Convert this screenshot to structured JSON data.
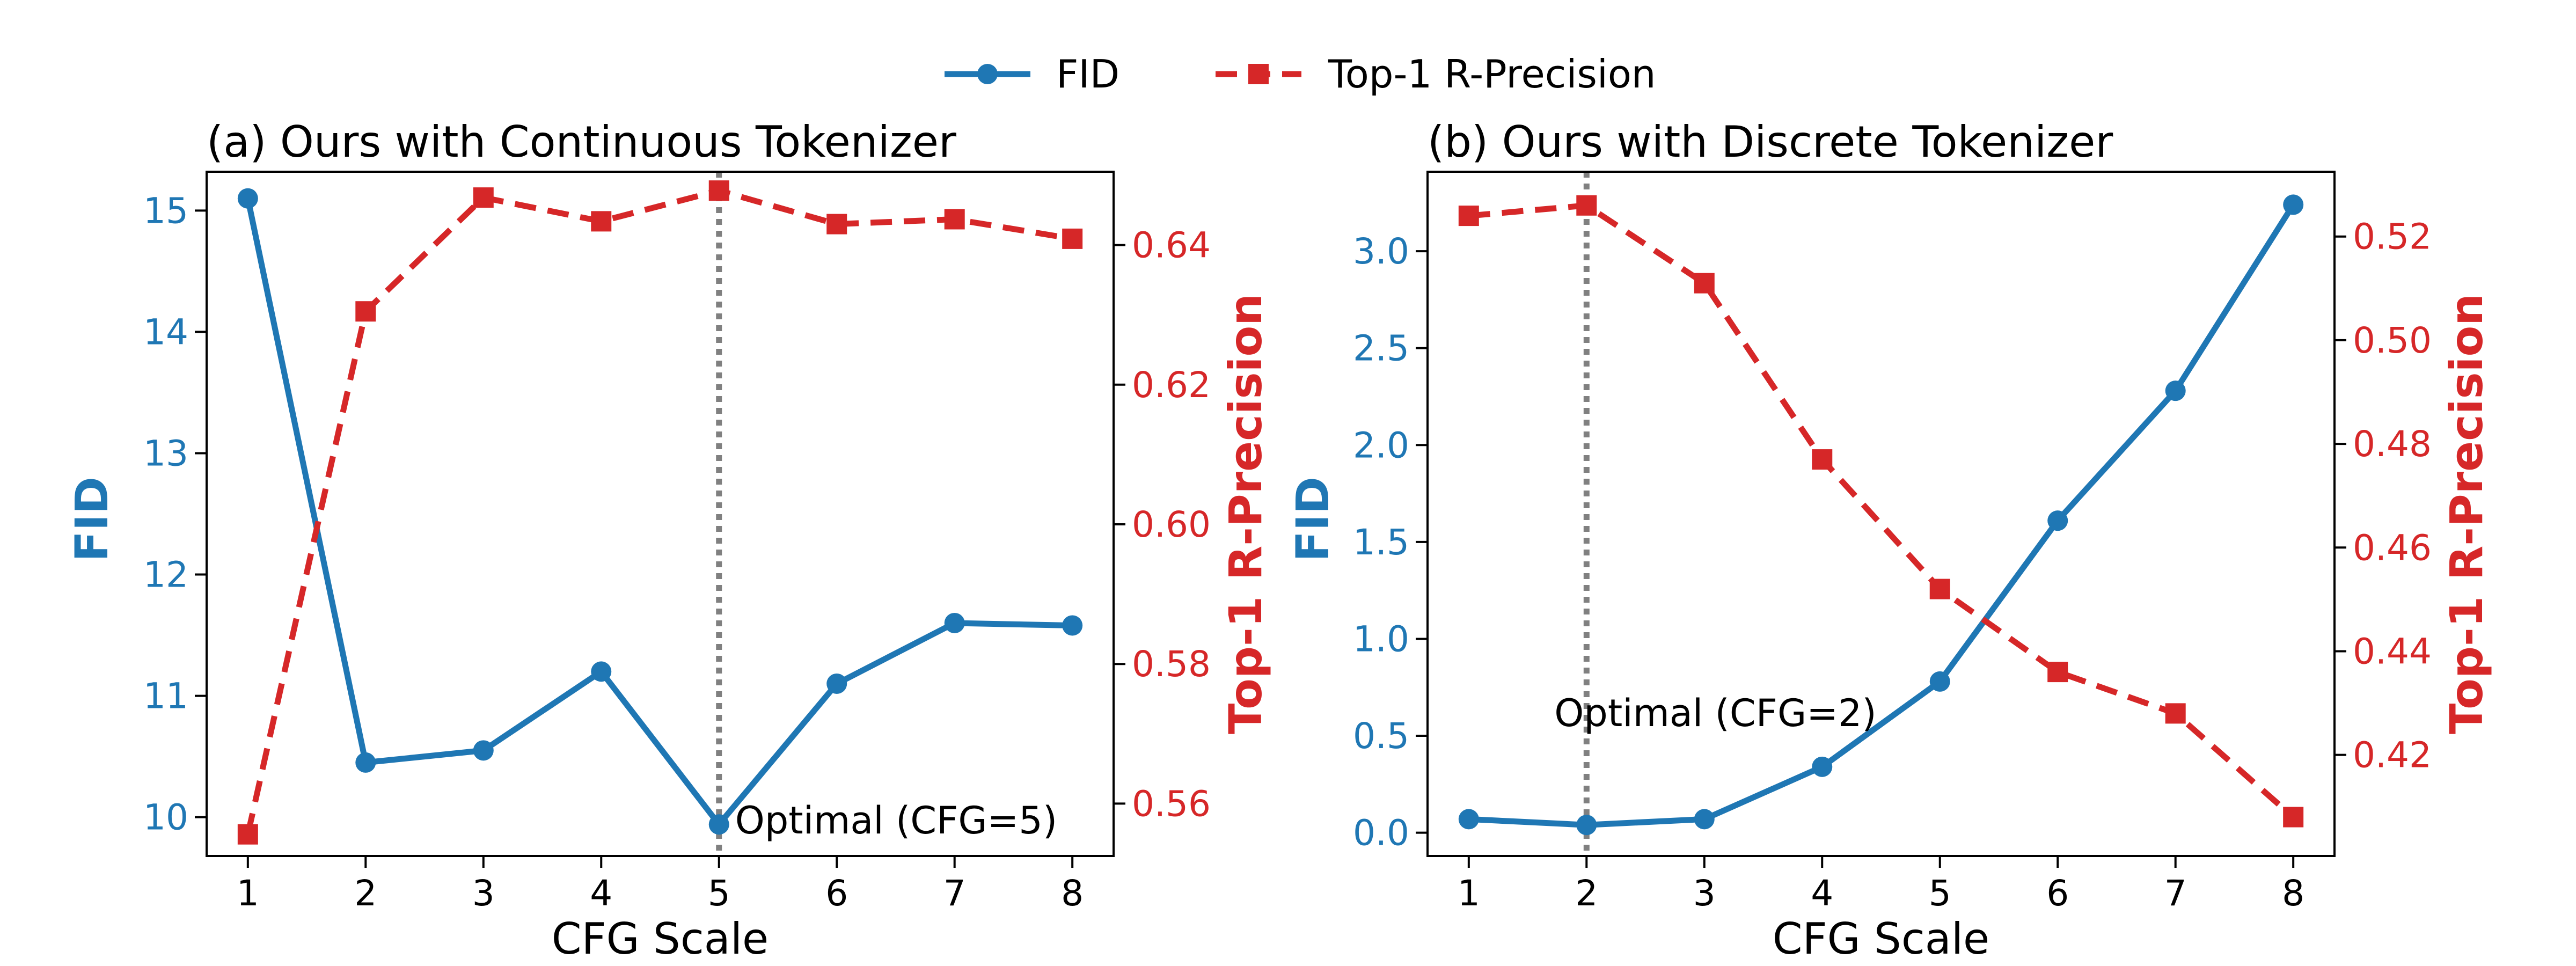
{
  "chart_data": [
    {
      "type": "line",
      "title": "(a) Ours with Continuous Tokenizer",
      "xlabel": "CFG Scale",
      "ylabel_left": "FID",
      "ylabel_right": "Top-1 R-Precision",
      "x": [
        1,
        2,
        3,
        4,
        5,
        6,
        7,
        8
      ],
      "x_ticks": [
        "1",
        "2",
        "3",
        "4",
        "5",
        "6",
        "7",
        "8"
      ],
      "xlim": [
        0.65,
        8.35
      ],
      "ylim_left": [
        9.68,
        15.32
      ],
      "ylim_right": [
        0.5525,
        0.6505
      ],
      "left_ticks": [
        {
          "value": 10,
          "label": "10"
        },
        {
          "value": 11,
          "label": "11"
        },
        {
          "value": 12,
          "label": "12"
        },
        {
          "value": 13,
          "label": "13"
        },
        {
          "value": 14,
          "label": "14"
        },
        {
          "value": 15,
          "label": "15"
        }
      ],
      "right_ticks": [
        {
          "value": 0.56,
          "label": "0.56"
        },
        {
          "value": 0.58,
          "label": "0.58"
        },
        {
          "value": 0.6,
          "label": "0.60"
        },
        {
          "value": 0.62,
          "label": "0.62"
        },
        {
          "value": 0.64,
          "label": "0.64"
        }
      ],
      "series": [
        {
          "name": "FID",
          "axis": "left",
          "color": "#1f77b4",
          "style": "solid",
          "marker": "circle",
          "values": [
            15.1,
            10.45,
            10.55,
            11.2,
            9.94,
            11.1,
            11.6,
            11.58
          ]
        },
        {
          "name": "Top-1 R-Precision",
          "axis": "right",
          "color": "#d62728",
          "style": "dashed",
          "marker": "square",
          "values": [
            0.5556,
            0.6305,
            0.6468,
            0.6434,
            0.6478,
            0.643,
            0.6437,
            0.6409
          ]
        }
      ],
      "optimal_x": 5,
      "annotation": "Optimal (CFG=5)"
    },
    {
      "type": "line",
      "title": "(b) Ours with Discrete Tokenizer",
      "xlabel": "CFG Scale",
      "ylabel_left": "FID",
      "ylabel_right": "Top-1 R-Precision",
      "x": [
        1,
        2,
        3,
        4,
        5,
        6,
        7,
        8
      ],
      "x_ticks": [
        "1",
        "2",
        "3",
        "4",
        "5",
        "6",
        "7",
        "8"
      ],
      "xlim": [
        0.65,
        8.35
      ],
      "ylim_left": [
        -0.12,
        3.41
      ],
      "ylim_right": [
        0.4005,
        0.5325
      ],
      "left_ticks": [
        {
          "value": 0.0,
          "label": "0.0"
        },
        {
          "value": 0.5,
          "label": "0.5"
        },
        {
          "value": 1.0,
          "label": "1.0"
        },
        {
          "value": 1.5,
          "label": "1.5"
        },
        {
          "value": 2.0,
          "label": "2.0"
        },
        {
          "value": 2.5,
          "label": "2.5"
        },
        {
          "value": 3.0,
          "label": "3.0"
        }
      ],
      "right_ticks": [
        {
          "value": 0.42,
          "label": "0.42"
        },
        {
          "value": 0.44,
          "label": "0.44"
        },
        {
          "value": 0.46,
          "label": "0.46"
        },
        {
          "value": 0.48,
          "label": "0.48"
        },
        {
          "value": 0.5,
          "label": "0.50"
        },
        {
          "value": 0.52,
          "label": "0.52"
        }
      ],
      "series": [
        {
          "name": "FID",
          "axis": "left",
          "color": "#1f77b4",
          "style": "solid",
          "marker": "circle",
          "values": [
            0.07,
            0.04,
            0.07,
            0.34,
            0.78,
            1.61,
            2.28,
            3.24
          ]
        },
        {
          "name": "Top-1 R-Precision",
          "axis": "right",
          "color": "#d62728",
          "style": "dashed",
          "marker": "square",
          "values": [
            0.524,
            0.526,
            0.511,
            0.477,
            0.452,
            0.436,
            0.428,
            0.408
          ]
        }
      ],
      "optimal_x": 2,
      "annotation": "Optimal (CFG=2)"
    }
  ],
  "legend": {
    "position": "top-center",
    "entries": [
      {
        "label": "FID",
        "color": "#1f77b4",
        "style": "solid",
        "marker": "circle"
      },
      {
        "label": "Top-1 R-Precision",
        "color": "#d62728",
        "style": "dashed",
        "marker": "square"
      }
    ]
  }
}
